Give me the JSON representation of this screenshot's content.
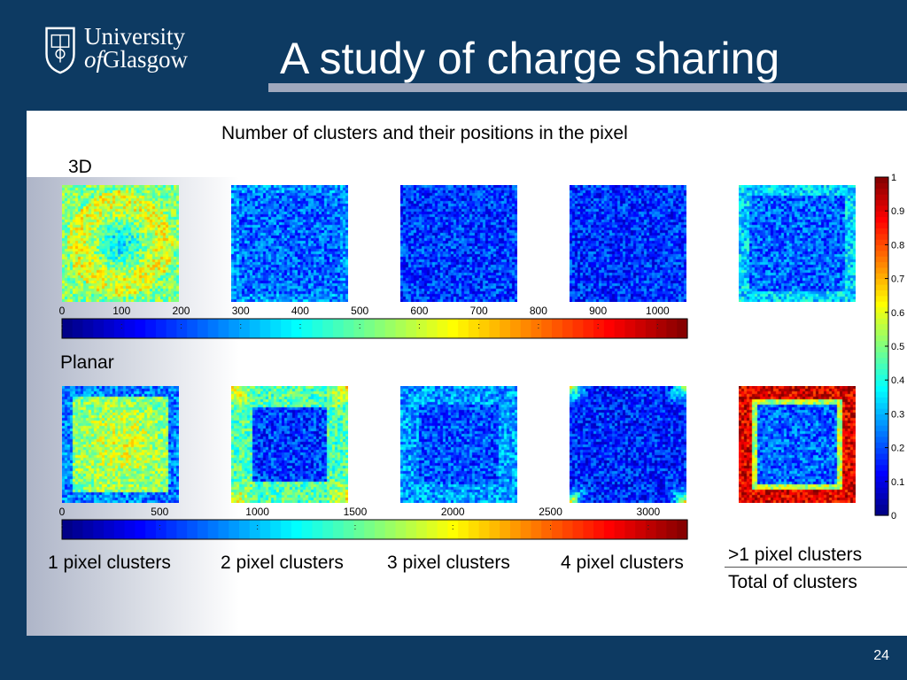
{
  "header": {
    "logo": {
      "line1": "University",
      "line2_of": "of",
      "line2_rest": "Glasgow"
    },
    "title": "A study of charge sharing"
  },
  "figure": {
    "caption": "Number of clusters and their positions in the pixel",
    "row_3d": "3D",
    "row_planar": "Planar",
    "column_labels": [
      "1 pixel clusters",
      "2 pixel clusters",
      "3 pixel clusters",
      "4 pixel clusters"
    ],
    "fifth_column_labels": [
      ">1 pixel clusters",
      "Total of clusters"
    ]
  },
  "chart_data": [
    {
      "type": "heatmap",
      "title": "",
      "scale": "3D",
      "colorbar_ticks": [
        0,
        100,
        200,
        300,
        400,
        500,
        600,
        700,
        800,
        900,
        1000
      ],
      "colorbar_range": [
        0,
        1050
      ]
    },
    {
      "type": "heatmap",
      "title": "",
      "scale": "Planar",
      "colorbar_ticks": [
        0,
        500,
        1000,
        1500,
        2000,
        2500,
        3000
      ],
      "colorbar_range": [
        0,
        3200
      ]
    },
    {
      "type": "heatmap",
      "title": "",
      "scale": "ratio",
      "colorbar_ticks": [
        0,
        0.1,
        0.2,
        0.3,
        0.4,
        0.5,
        0.6,
        0.7,
        0.8,
        0.9,
        1
      ],
      "colorbar_range": [
        0,
        1
      ]
    }
  ],
  "slide_number": "24",
  "colors": {
    "background": "#0d3a62",
    "rule": "#9fa8bd"
  }
}
